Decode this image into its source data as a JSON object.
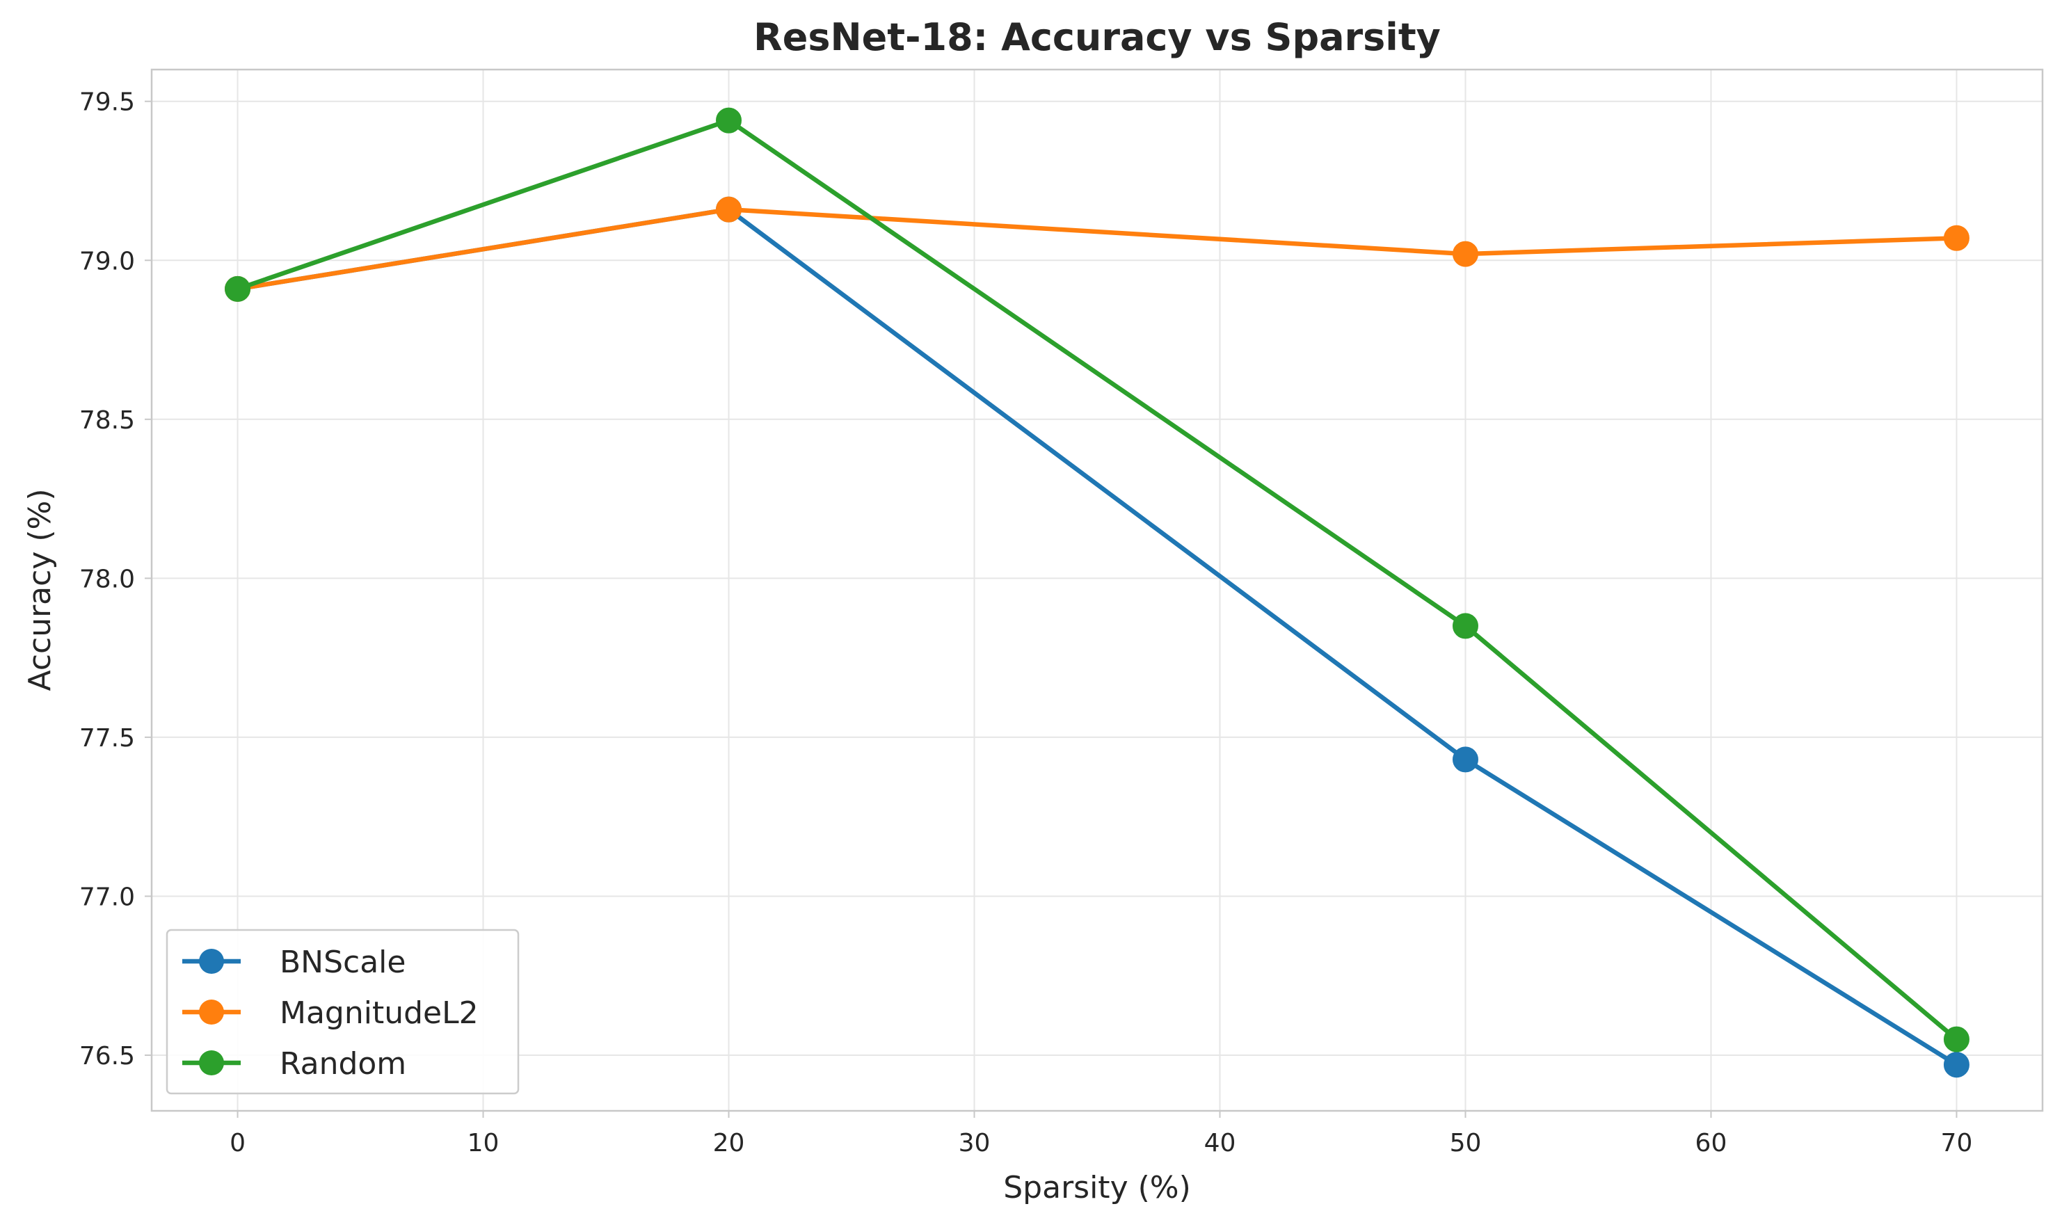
{
  "chart_data": {
    "type": "line",
    "title": "ResNet-18: Accuracy vs Sparsity",
    "xlabel": "Sparsity (%)",
    "ylabel": "Accuracy (%)",
    "xlim": [
      -3.5,
      73.5
    ],
    "ylim": [
      76.325,
      79.6
    ],
    "xticks": [
      0,
      10,
      20,
      30,
      40,
      50,
      60,
      70
    ],
    "yticks": [
      76.5,
      77.0,
      77.5,
      78.0,
      78.5,
      79.0,
      79.5
    ],
    "xtick_labels": [
      "0",
      "10",
      "20",
      "30",
      "40",
      "50",
      "60",
      "70"
    ],
    "ytick_labels": [
      "76.5",
      "77.0",
      "77.5",
      "78.0",
      "78.5",
      "79.0",
      "79.5"
    ],
    "grid": true,
    "legend_position": "lower-left",
    "x": [
      0,
      20,
      50,
      70
    ],
    "series": [
      {
        "name": "BNScale",
        "color": "#1f77b4",
        "values": [
          78.91,
          79.16,
          77.43,
          76.47
        ]
      },
      {
        "name": "MagnitudeL2",
        "color": "#ff7f0e",
        "values": [
          78.91,
          79.16,
          79.02,
          79.07
        ]
      },
      {
        "name": "Random",
        "color": "#2ca02c",
        "values": [
          78.91,
          79.44,
          77.85,
          76.55
        ]
      }
    ]
  }
}
